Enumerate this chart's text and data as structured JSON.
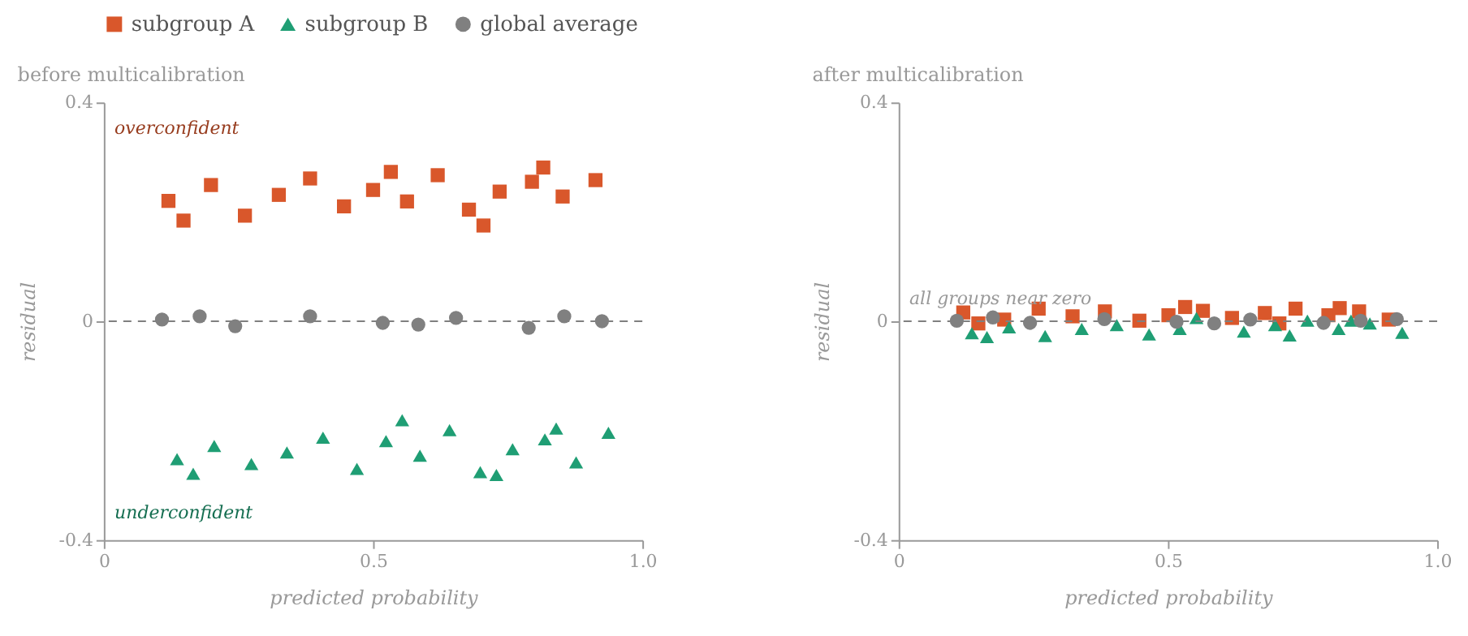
{
  "chart_data": [
    {
      "type": "scatter",
      "title": "before multicalibration",
      "xlabel": "predicted probability",
      "ylabel": "residual",
      "xlim": [
        0,
        1
      ],
      "ylim": [
        -0.4,
        0.4
      ],
      "xticks": [
        0,
        0.5,
        {
          "value": 1,
          "label": "1.0"
        }
      ],
      "yticks": [
        0.4,
        0,
        -0.4
      ],
      "grid": false,
      "legend": "top",
      "ref_lines": [
        {
          "axis": "y",
          "value": 0,
          "color": "#808080",
          "line_style": "dashed"
        }
      ],
      "annotations": [
        "overconfident",
        "underconfident"
      ],
      "series": [
        {
          "name": "subgroup A",
          "color": "#d9572b",
          "marker": "square",
          "x": [
            0.12,
            0.148,
            0.199,
            0.262,
            0.325,
            0.383,
            0.446,
            0.5,
            0.533,
            0.563,
            0.62,
            0.678,
            0.705,
            0.735,
            0.795,
            0.816,
            0.852,
            0.913
          ],
          "values": [
            0.22,
            0.184,
            0.249,
            0.193,
            0.231,
            0.261,
            0.21,
            0.24,
            0.273,
            0.219,
            0.267,
            0.204,
            0.175,
            0.237,
            0.255,
            0.281,
            0.228,
            0.258
          ]
        },
        {
          "name": "subgroup B",
          "color": "#1f9e74",
          "marker": "triangle",
          "x": [
            0.136,
            0.166,
            0.205,
            0.274,
            0.34,
            0.407,
            0.47,
            0.524,
            0.554,
            0.587,
            0.642,
            0.699,
            0.729,
            0.759,
            0.819,
            0.84,
            0.877,
            0.937
          ],
          "values": [
            -0.252,
            -0.279,
            -0.228,
            -0.261,
            -0.24,
            -0.213,
            -0.27,
            -0.219,
            -0.181,
            -0.246,
            -0.199,
            -0.276,
            -0.281,
            -0.234,
            -0.216,
            -0.196,
            -0.258,
            -0.204
          ]
        },
        {
          "name": "global average",
          "color": "#808080",
          "marker": "circle",
          "x": [
            0.108,
            0.178,
            0.244,
            0.383,
            0.518,
            0.584,
            0.654,
            0.789,
            0.855,
            0.925
          ],
          "values": [
            0.003,
            0.009,
            -0.009,
            0.009,
            -0.003,
            -0.006,
            0.006,
            -0.012,
            0.009,
            0
          ]
        }
      ]
    },
    {
      "type": "scatter",
      "title": "after multicalibration",
      "xlabel": "predicted probability",
      "ylabel": "residual",
      "xlim": [
        0,
        1
      ],
      "ylim": [
        -0.4,
        0.4
      ],
      "xticks": [
        0,
        0.5,
        {
          "value": 1,
          "label": "1.0"
        }
      ],
      "yticks": [
        0.4,
        0,
        -0.4
      ],
      "grid": false,
      "ref_lines": [
        {
          "axis": "y",
          "value": 0,
          "color": "#808080",
          "line_style": "dashed"
        }
      ],
      "annotations": [
        "all groups near zero"
      ],
      "series": [
        {
          "name": "subgroup A",
          "color": "#d9572b",
          "marker": "square",
          "x": [
            0.12,
            0.148,
            0.196,
            0.26,
            0.323,
            0.383,
            0.447,
            0.501,
            0.532,
            0.565,
            0.619,
            0.68,
            0.707,
            0.737,
            0.798,
            0.819,
            0.855,
            0.91
          ],
          "values": [
            0.016,
            -0.004,
            0.003,
            0.023,
            0.009,
            0.018,
            0.001,
            0.011,
            0.026,
            0.019,
            0.006,
            0.015,
            -0.004,
            0.023,
            0.011,
            0.024,
            0.018,
            0.003
          ]
        },
        {
          "name": "subgroup B",
          "color": "#1f9e74",
          "marker": "triangle",
          "x": [
            0.136,
            0.164,
            0.205,
            0.272,
            0.34,
            0.405,
            0.465,
            0.522,
            0.553,
            0.586,
            0.641,
            0.699,
            0.726,
            0.759,
            0.817,
            0.84,
            0.875,
            0.935
          ],
          "values": [
            -0.022,
            -0.029,
            -0.011,
            -0.027,
            -0.014,
            -0.007,
            -0.024,
            -0.014,
            0.006,
            null,
            -0.019,
            -0.007,
            -0.026,
            0.001,
            -0.014,
            0.001,
            -0.004,
            -0.021
          ]
        },
        {
          "name": "global average",
          "color": "#808080",
          "marker": "circle",
          "x": [
            0.108,
            0.175,
            0.244,
            0.382,
            0.516,
            0.586,
            0.653,
            0.789,
            0.858,
            0.925
          ],
          "values": [
            0.001,
            0.007,
            -0.003,
            0.004,
            -0.001,
            -0.004,
            0.003,
            -0.003,
            0.001,
            0.004
          ]
        }
      ]
    }
  ]
}
